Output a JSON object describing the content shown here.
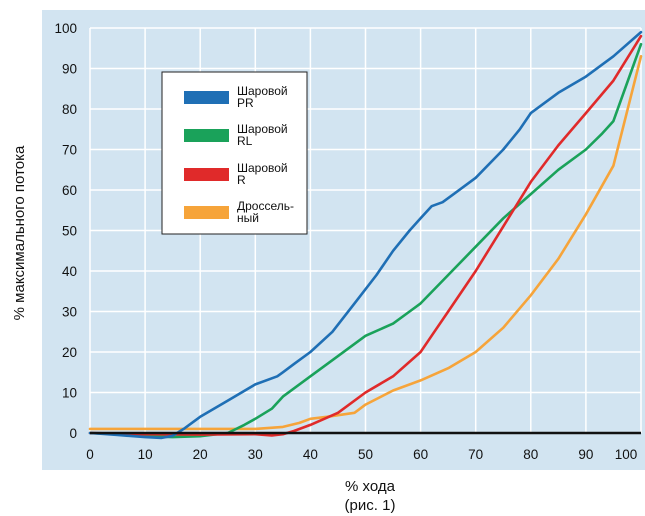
{
  "chart_data": {
    "type": "line",
    "xlabel": "% хода",
    "xlabel_note": "(рис. 1)",
    "ylabel": "% максимального потока",
    "xlim": [
      0,
      100
    ],
    "ylim": [
      0,
      100
    ],
    "x_ticks": [
      "0",
      "10",
      "20",
      "30",
      "40",
      "50",
      "60",
      "70",
      "80",
      "90",
      "100"
    ],
    "y_ticks": [
      "0",
      "10",
      "20",
      "30",
      "40",
      "50",
      "60",
      "70",
      "80",
      "90",
      "100"
    ],
    "grid": true,
    "legend_position": "upper-left",
    "colors": {
      "plot_background": "#d2e4f1",
      "grid": "#ffffff"
    },
    "series": [
      {
        "name": "Шаровой PR",
        "label_lines": [
          "Шаровой",
          "PR"
        ],
        "color": "#1f6fb5",
        "x": [
          0,
          5,
          10,
          13,
          15,
          17,
          20,
          25,
          30,
          34,
          35,
          37,
          40,
          44,
          48,
          52,
          55,
          58,
          60,
          62,
          63,
          64,
          66,
          70,
          75,
          78,
          80,
          85,
          90,
          95,
          100
        ],
        "y": [
          0,
          -0.5,
          -1,
          -1.2,
          -0.7,
          1,
          4,
          8,
          12,
          14,
          15,
          17,
          20,
          25,
          32,
          39,
          45,
          50,
          53,
          56,
          56.5,
          57,
          59,
          63,
          70,
          75,
          79,
          84,
          88,
          93,
          99
        ]
      },
      {
        "name": "Шаровой RL",
        "label_lines": [
          "Шаровой",
          "RL"
        ],
        "color": "#1aa25a",
        "x": [
          0,
          5,
          10,
          15,
          20,
          25,
          28,
          30,
          33,
          35,
          40,
          45,
          50,
          55,
          58,
          60,
          65,
          70,
          75,
          80,
          85,
          90,
          93,
          95,
          100
        ],
        "y": [
          0,
          -0.3,
          -0.8,
          -1,
          -0.8,
          0,
          2,
          3.5,
          6,
          9,
          14,
          19,
          24,
          27,
          30,
          32,
          39,
          46,
          53,
          59,
          65,
          70,
          74,
          77,
          96
        ]
      },
      {
        "name": "Шаровой R",
        "label_lines": [
          "Шаровой",
          "R"
        ],
        "color": "#e02a2a",
        "x": [
          0,
          10,
          20,
          30,
          33,
          35,
          37,
          40,
          45,
          50,
          55,
          60,
          62,
          65,
          70,
          75,
          80,
          85,
          90,
          95,
          100
        ],
        "y": [
          0,
          -0.3,
          -0.4,
          -0.3,
          -0.6,
          -0.3,
          0.5,
          2,
          5,
          10,
          14,
          20,
          24,
          30,
          40,
          51,
          62,
          71,
          79,
          87,
          98
        ]
      },
      {
        "name": "Дроссельный",
        "label_lines": [
          "Дроссель-",
          "ный"
        ],
        "color": "#f6a43a",
        "x": [
          0,
          10,
          20,
          30,
          35,
          38,
          40,
          43,
          48,
          50,
          55,
          60,
          65,
          70,
          75,
          80,
          85,
          90,
          95,
          100
        ],
        "y": [
          1,
          1,
          1,
          1,
          1.5,
          2.5,
          3.5,
          4,
          5,
          7,
          10.5,
          13,
          16,
          20,
          26,
          34,
          43,
          54,
          66,
          93
        ]
      }
    ]
  }
}
